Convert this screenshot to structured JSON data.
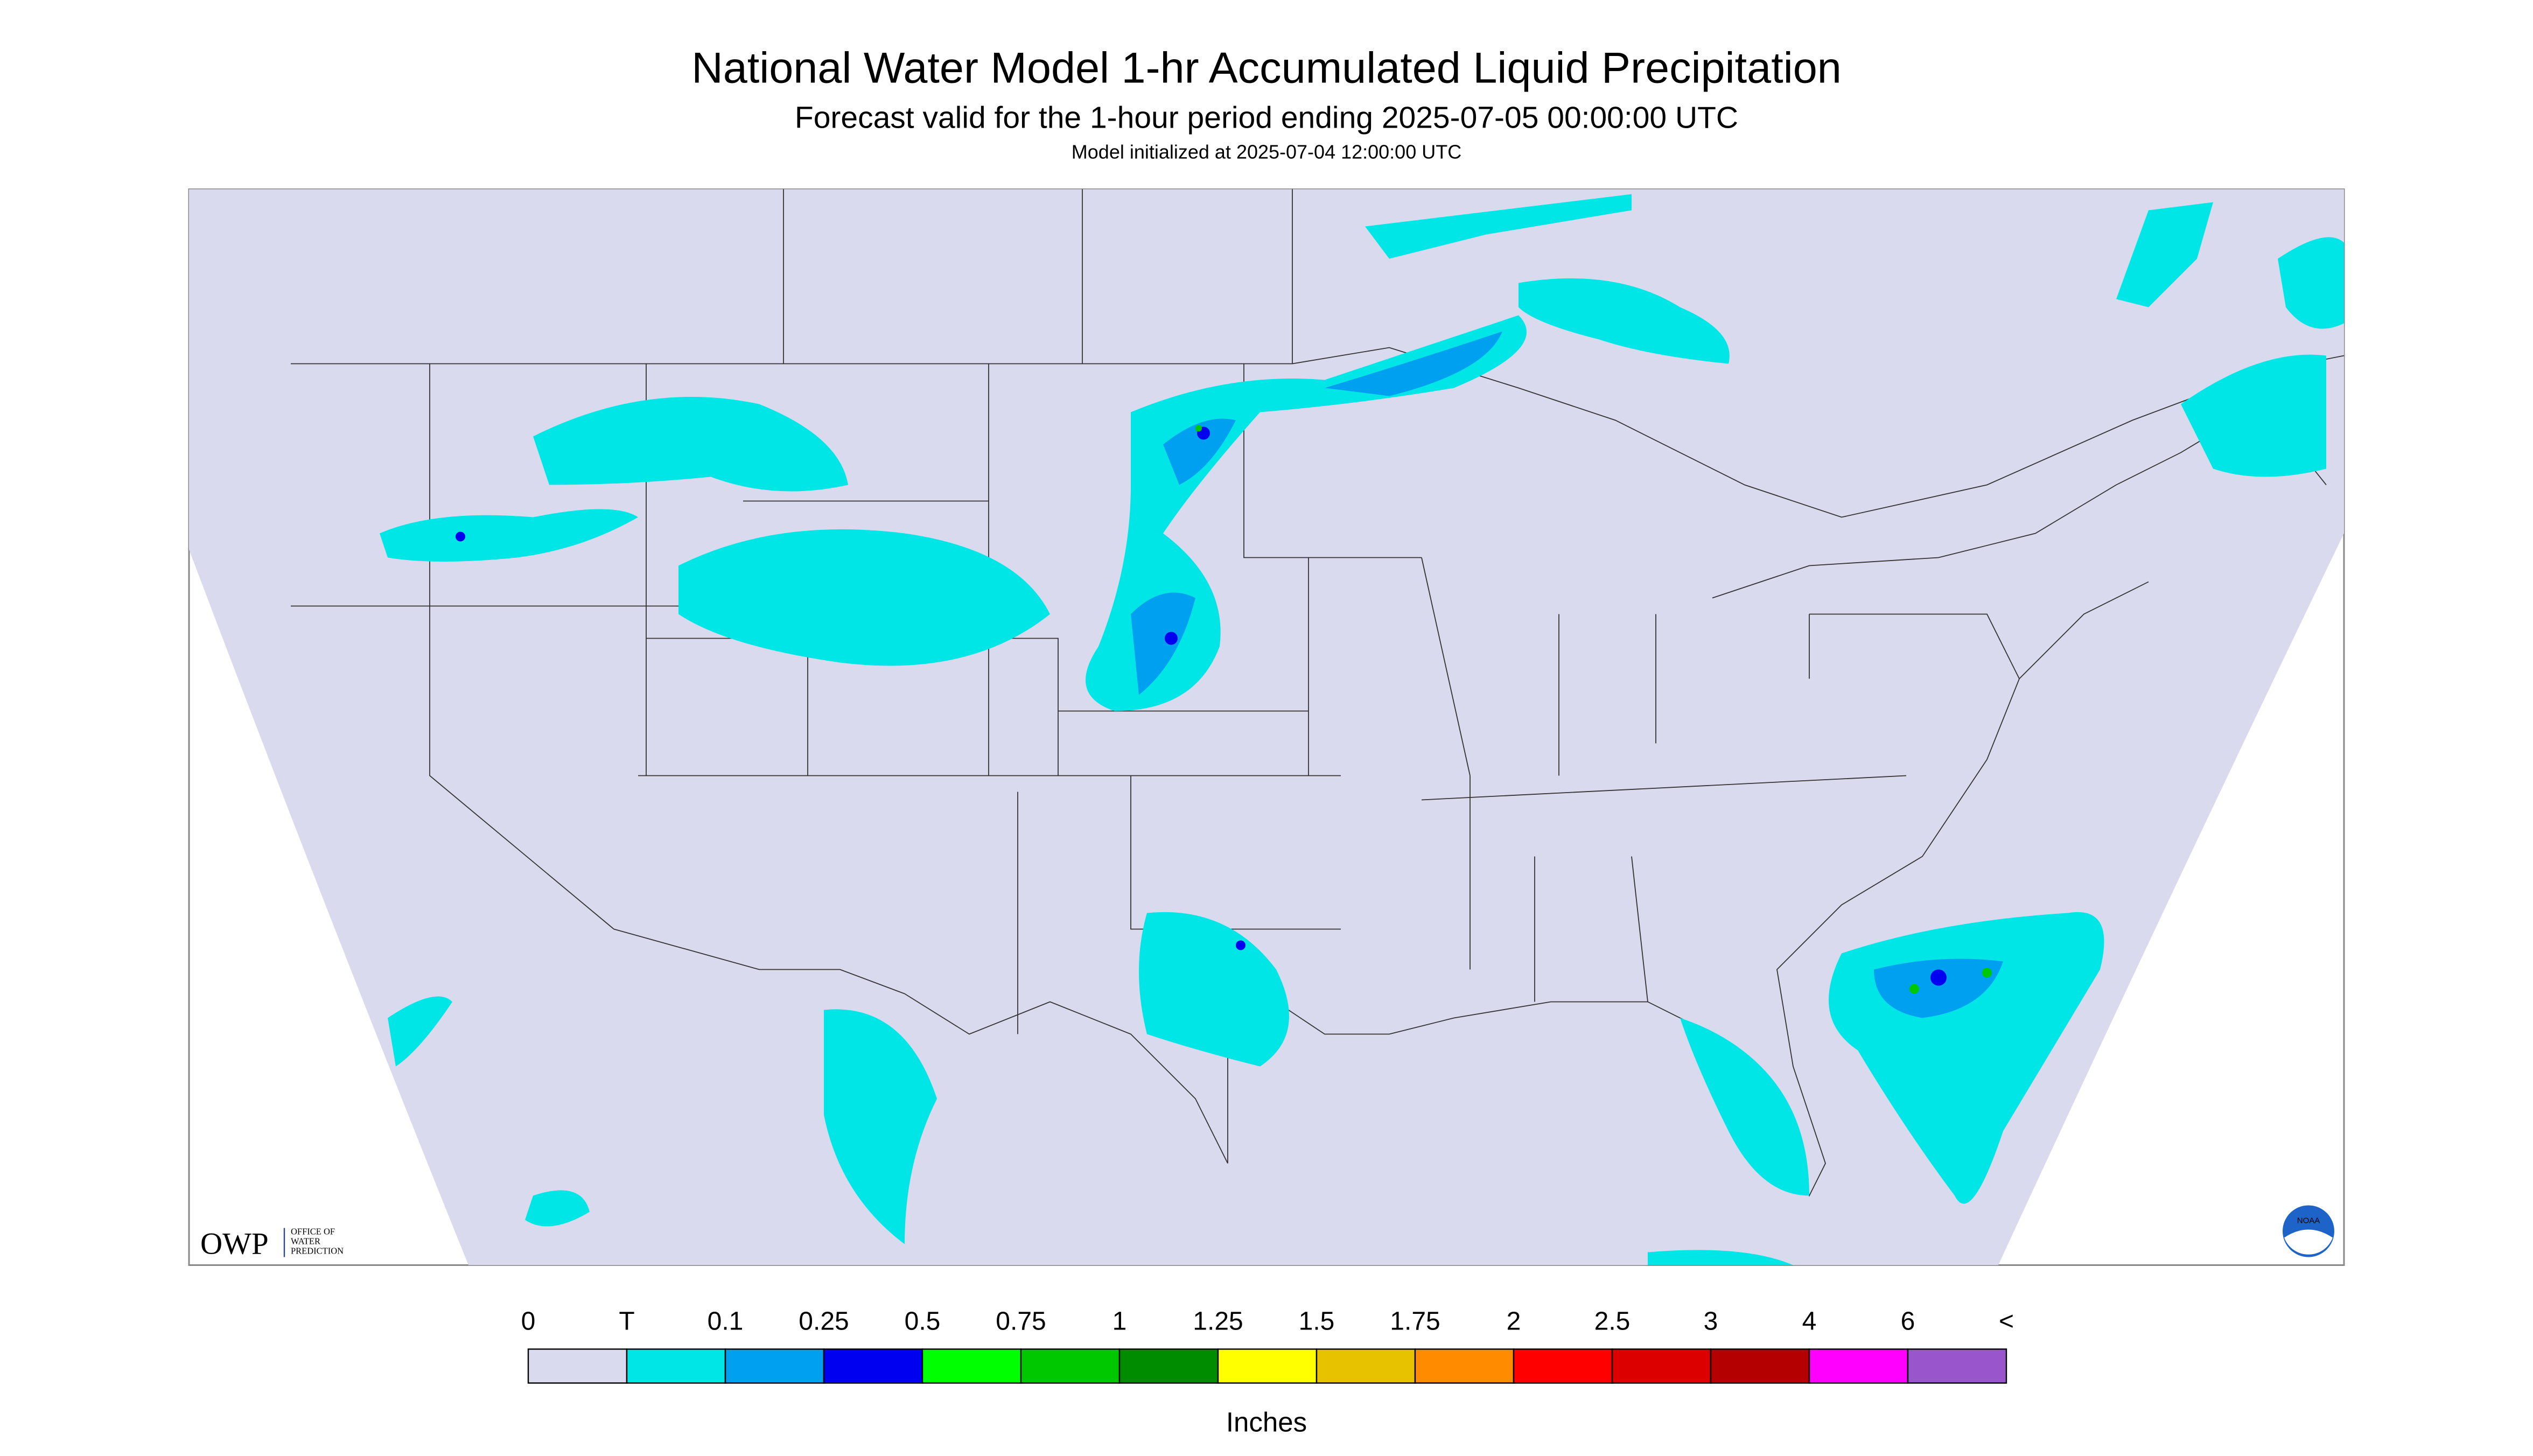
{
  "header": {
    "title": "National Water Model 1-hr Accumulated Liquid Precipitation",
    "subtitle": "Forecast valid for the 1-hour period ending 2025-07-05 00:00:00 UTC",
    "note": "Model initialized at 2025-07-04 12:00:00 UTC"
  },
  "logos": {
    "owp": "OWP",
    "owp_text": [
      "OFFICE OF",
      "WATER",
      "PREDICTION"
    ],
    "noaa": "NOAA"
  },
  "legend": {
    "labels": [
      "0",
      "T",
      "0.1",
      "0.25",
      "0.5",
      "0.75",
      "1",
      "1.25",
      "1.5",
      "1.75",
      "2",
      "2.5",
      "3",
      "4",
      "6",
      "<"
    ],
    "colors": [
      "#dadaee",
      "#00e6e6",
      "#00a0f0",
      "#0000f0",
      "#00ff00",
      "#00c800",
      "#008c00",
      "#ffff00",
      "#e6c200",
      "#ff8c00",
      "#ff0000",
      "#dc0000",
      "#b40000",
      "#ff00ff",
      "#9955cc"
    ],
    "units": "Inches"
  }
}
